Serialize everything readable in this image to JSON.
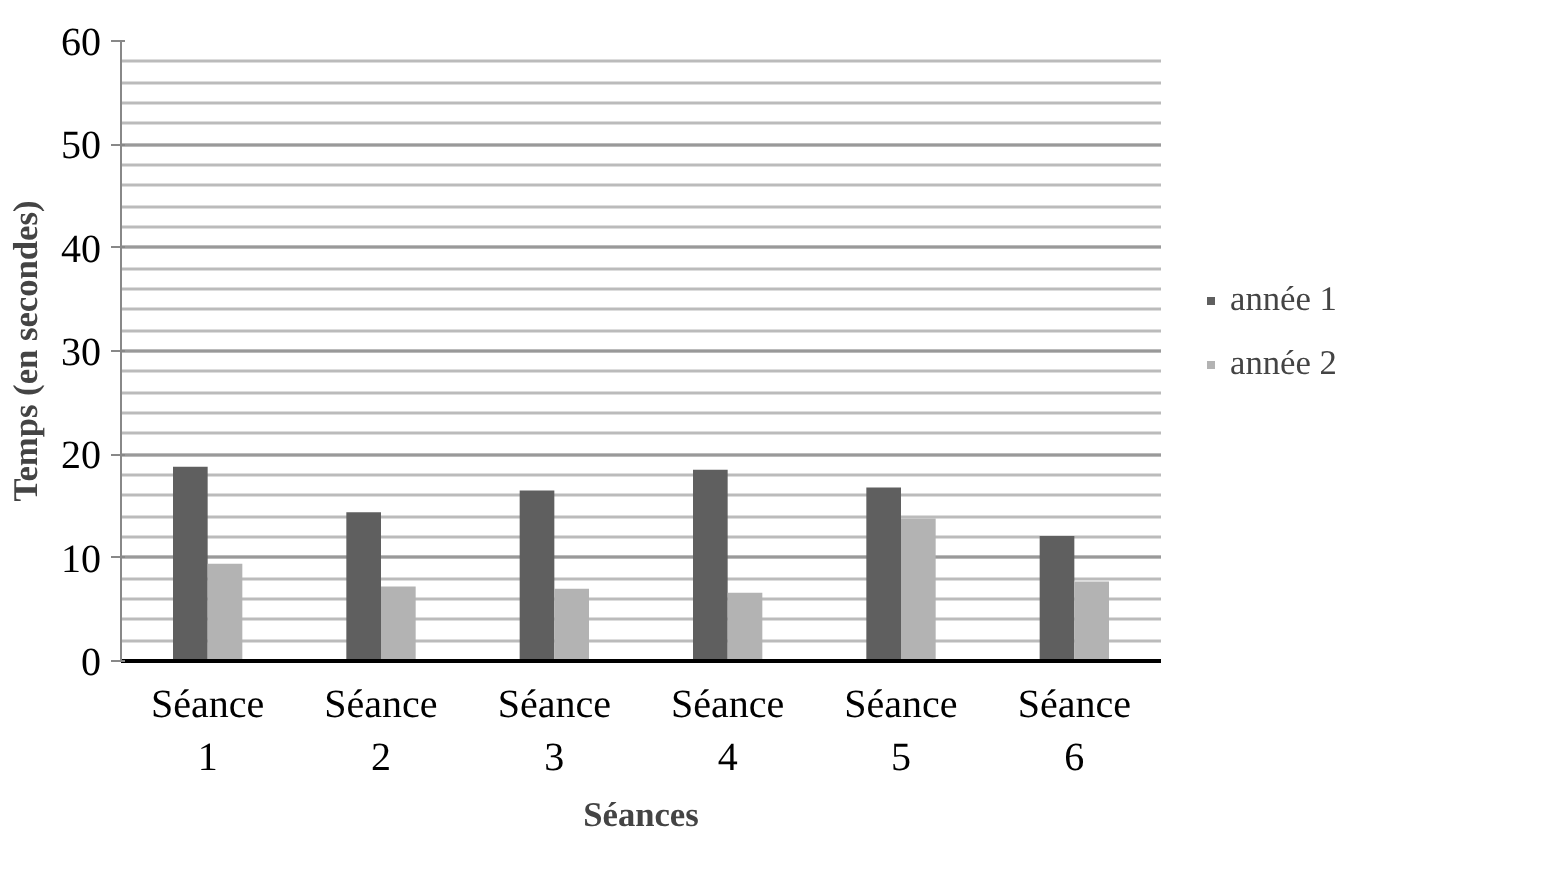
{
  "chart_data": {
    "type": "bar",
    "xlabel": "Séances",
    "ylabel": "Temps (en secondes)",
    "categories": [
      "Séance 1",
      "Séance 2",
      "Séance 3",
      "Séance 4",
      "Séance 5",
      "Séance 6"
    ],
    "series": [
      {
        "name": "année 1",
        "color": "#5f5f5f",
        "values": [
          18.8,
          14.4,
          16.5,
          18.5,
          16.8,
          12.1
        ]
      },
      {
        "name": "année 2",
        "color": "#b3b3b3",
        "values": [
          9.4,
          7.2,
          7.0,
          6.6,
          13.8,
          7.7
        ]
      }
    ],
    "ylim": [
      0,
      60
    ],
    "yticks": [
      0,
      10,
      20,
      30,
      40,
      50,
      60
    ],
    "grid": "y",
    "legend": "right"
  }
}
